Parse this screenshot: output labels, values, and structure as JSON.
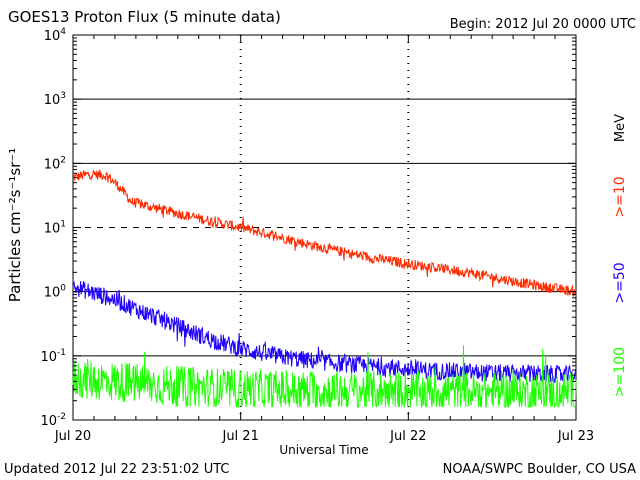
{
  "chart_data": {
    "type": "line",
    "title": "GOES13 Proton Flux (5 minute data)",
    "begin_label": "Begin: 2012 Jul 20 0000 UTC",
    "xlabel": "Universal Time",
    "ylabel": "Particles cm⁻²s⁻¹sr⁻¹",
    "y_scale": "log",
    "ylim": [
      0.01,
      10000
    ],
    "xlim_days": [
      0,
      3
    ],
    "x_ticks": [
      {
        "label": "Jul 20",
        "day": 0
      },
      {
        "label": "Jul 21",
        "day": 1
      },
      {
        "label": "Jul 22",
        "day": 2
      },
      {
        "label": "Jul 23",
        "day": 3
      }
    ],
    "y_ticks": [
      {
        "base": "10",
        "exp": "-2",
        "value": 0.01
      },
      {
        "base": "10",
        "exp": "-1",
        "value": 0.1
      },
      {
        "base": "10",
        "exp": "0",
        "value": 1
      },
      {
        "base": "10",
        "exp": "1",
        "value": 10
      },
      {
        "base": "10",
        "exp": "2",
        "value": 100
      },
      {
        "base": "10",
        "exp": "3",
        "value": 1000
      },
      {
        "base": "10",
        "exp": "4",
        "value": 10000
      }
    ],
    "threshold_lines": [
      0.1,
      1,
      100,
      1000
    ],
    "dashed_lines": [
      10
    ],
    "unit_label": "MeV",
    "series": [
      {
        "name": ">=10",
        "color": "#ff2a00",
        "x_days": [
          0.0,
          0.1,
          0.2,
          0.27,
          0.35,
          0.5,
          0.65,
          0.8,
          1.0,
          1.2,
          1.4,
          1.6,
          1.8,
          2.0,
          2.2,
          2.4,
          2.6,
          2.8,
          3.0
        ],
        "values": [
          60,
          68,
          65,
          45,
          25,
          20,
          16,
          13,
          10,
          7.5,
          5.5,
          4.2,
          3.3,
          2.7,
          2.3,
          1.9,
          1.5,
          1.2,
          1.0
        ],
        "noise": 0.08
      },
      {
        "name": ">=50",
        "color": "#1f00ff",
        "x_days": [
          0.0,
          0.1,
          0.25,
          0.4,
          0.55,
          0.7,
          0.85,
          1.0,
          1.2,
          1.4,
          1.6,
          1.8,
          2.0,
          2.2,
          2.4,
          2.6,
          2.8,
          3.0
        ],
        "values": [
          1.2,
          1.0,
          0.75,
          0.5,
          0.35,
          0.24,
          0.17,
          0.13,
          0.1,
          0.085,
          0.075,
          0.068,
          0.062,
          0.058,
          0.055,
          0.053,
          0.052,
          0.05
        ],
        "noise": 0.14
      },
      {
        "name": ">=100",
        "color": "#1dff00",
        "x_days": [
          0.0,
          0.5,
          1.0,
          1.5,
          2.0,
          2.5,
          3.0
        ],
        "values": [
          0.045,
          0.035,
          0.03,
          0.028,
          0.028,
          0.027,
          0.027
        ],
        "noise": 0.32
      }
    ]
  },
  "footer": {
    "updated": "Updated 2012 Jul 22 23:51:02 UTC",
    "source": "NOAA/SWPC Boulder, CO USA"
  }
}
